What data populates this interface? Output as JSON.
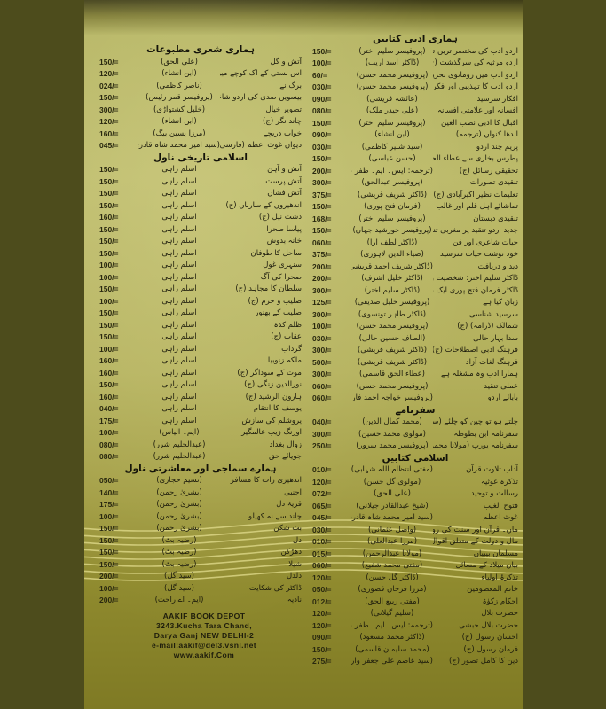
{
  "colors": {
    "background": "#4d4c1c",
    "paper": "#bcba6a",
    "ink": "#1c1b0c",
    "waves": "#e2dc8e"
  },
  "left_column": [
    {
      "heading": "ہماری شعری مطبوعات",
      "rows": [
        [
          "آتش و گل",
          "(علی الحق)",
          "150/="
        ],
        [
          "اس بستی کے اک کوچے میں (ج)",
          "(ابن انشاء)",
          "120/="
        ],
        [
          "برگ نے",
          "(ناصر کاظمی)",
          "024/="
        ],
        [
          "بیسویں صدی کی اردو شاعری",
          "(پروفیسر قمر رئیس)",
          "150/="
        ],
        [
          "تصویر خیال",
          "(خلیل کشتواڑی)",
          "300/="
        ],
        [
          "چاند نگر (ج)",
          "(ابن انشاء)",
          "120/="
        ],
        [
          "خواب دریچے",
          "(مرزا یٰسین بیگ)",
          "160/="
        ],
        [
          "دیوان غوث اعظم (فارسی۔اردو)",
          "(سید امیر محمد شاہ قادری)",
          "045/="
        ]
      ]
    },
    {
      "heading": "اسلامی تاریخی ناول",
      "rows": [
        [
          "آتش و آہن",
          "اسلم راہی",
          "150/="
        ],
        [
          "آتش پرست",
          "اسلم راہی",
          "150/="
        ],
        [
          "آتش فشاں",
          "اسلم راہی",
          "150/="
        ],
        [
          "اندھیروں کے سارباں (ج)",
          "اسلم راہی",
          "150/="
        ],
        [
          "دشت نیل (ج)",
          "اسلم راہی",
          "160/="
        ],
        [
          "پیاسا صحرا",
          "اسلم راہی",
          "150/="
        ],
        [
          "خانہ بدوش",
          "اسلم راہی",
          "150/="
        ],
        [
          "ساحل کا طوفان",
          "اسلم راہی",
          "150/="
        ],
        [
          "سنہری غول",
          "اسلم راہی",
          "100/="
        ],
        [
          "صحرا کی آگ",
          "اسلم راہی",
          "100/="
        ],
        [
          "سلطان کا مجاہد (ج)",
          "اسلم راہی",
          "150/="
        ],
        [
          "صلیب و حرم (ج)",
          "اسلم راہی",
          "100/="
        ],
        [
          "صلیب کے بھنور",
          "اسلم راہی",
          "150/="
        ],
        [
          "ظلم کدہ",
          "اسلم راہی",
          "150/="
        ],
        [
          "عقاب (ج)",
          "اسلم راہی",
          "150/="
        ],
        [
          "گرداب",
          "اسلم راہی",
          "100/="
        ],
        [
          "ملکہ زنوبیا",
          "اسلم راہی",
          "160/="
        ],
        [
          "موت کے سوداگر (ج)",
          "اسلم راہی",
          "160/="
        ],
        [
          "نورالدین زنگی (ج)",
          "اسلم راہی",
          "150/="
        ],
        [
          "ہارون الرشید (ج)",
          "اسلم راہی",
          "160/="
        ],
        [
          "یوسف کا انتقام",
          "اسلم راہی",
          "040/="
        ],
        [
          "یروشلم کی سازش",
          "اسلم راہی",
          "175/="
        ],
        [
          "اورنگ زیب عالمگیر",
          "(ایم۔ الیاس)",
          "100/="
        ],
        [
          "زوال بغداد",
          "(عبدالحلیم شرر)",
          "080/="
        ],
        [
          "جویائے حق",
          "(عبدالحلیم شرر)",
          "080/="
        ]
      ]
    },
    {
      "heading": "ہمارے سماجی اور معاشرتی ناول",
      "rows": [
        [
          "اندھیری رات کا مسافر",
          "(نسیم حجازی)",
          "050/="
        ],
        [
          "اجنبی",
          "(بشریٰ رحمن)",
          "140/="
        ],
        [
          "قریۂ دل",
          "(بشریٰ رحمن)",
          "175/="
        ],
        [
          "چاند سے نہ کھیلو",
          "(بشریٰ رحمن)",
          "100/="
        ],
        [
          "بت شکن",
          "(بشریٰ رحمن)",
          "150/="
        ],
        [
          "دل",
          "(رضیہ بٹ)",
          "150/="
        ],
        [
          "دھڑکن",
          "(رضیہ بٹ)",
          "150/="
        ],
        [
          "شیلا",
          "(رضیہ بٹ)",
          "150/="
        ],
        [
          "دلدل",
          "(سید گل)",
          "200/="
        ],
        [
          "ڈاکٹر کی شکایت",
          "(سید گل)",
          "100/="
        ],
        [
          "نادیہ",
          "(ایم۔ اے راحت)",
          "200/="
        ]
      ]
    }
  ],
  "right_column": [
    {
      "heading": "ہماری ادبی کتابیں",
      "rows": [
        [
          "اردو ادب کی مختصر ترین تاریخ",
          "(پروفیسر سلیم اختر)",
          "150/="
        ],
        [
          "اردو مرثیہ کی سرگذشت (ج)",
          "(ڈاکٹر اسد اریب)",
          "100/="
        ],
        [
          "اردو ادب میں رومانوی تحریک",
          "(پروفیسر محمد حسن)",
          "60/="
        ],
        [
          "اردو ادب کا تہذیبی اور فکری پس منظر",
          "(پروفیسر محمد حسن)",
          "030/="
        ],
        [
          "افکار سرسید",
          "(عائشہ قریشی)",
          "090/="
        ],
        [
          "افسانہ اور علامتی افسانہ",
          "(علی حیدر ملک)",
          "080/="
        ],
        [
          "اقبال کا ادبی نصب العین",
          "(پروفیسر سلیم اختر)",
          "150/="
        ],
        [
          "اندھا کنواں (ترجمہ)",
          "(ابن انشاء)",
          "090/="
        ],
        [
          "پریم چند اردو",
          "(سید شبیر کاظمی)",
          "030/="
        ],
        [
          "پطرس بخاری سے عطاء الحق قاسمی تک",
          "(حسن عباسی)",
          "150/="
        ],
        [
          "تحقیقی رسائل (ج)",
          "(ترجمہ: ایس۔ ایم۔ ظفر علی)",
          "200/="
        ],
        [
          "تنقیدی تصورات",
          "(پروفیسر عبدالحق)",
          "300/="
        ],
        [
          "تعلیمات نظیر اکبرآبادی (ج)",
          "(ڈاکٹر شریف قریشی)",
          "375/="
        ],
        [
          "تماشائے اہل قلم اور غالب",
          "(فرمان فتح پوری)",
          "150/="
        ],
        [
          "تنقیدی دبستان",
          "(پروفیسر سلیم اختر)",
          "168/="
        ],
        [
          "جدید اردو تنقید پر مغربی تنقید کے اثرات",
          "(پروفیسر خورشید جہاں)",
          "150/="
        ],
        [
          "حیات شاعری اور فن",
          "(ڈاکٹر لطف آرا)",
          "060/="
        ],
        [
          "خود نوشت حیات سرسید",
          "(ضیاء الدین لاہوری)",
          "375/="
        ],
        [
          "دید و دریافت",
          "(ڈاکٹر شریف احمد قریشی)",
          "200/="
        ],
        [
          "ڈاکٹر سلیم اختر: شخصیت و فن",
          "(ڈاکٹر خلیل اشرف)",
          "200/="
        ],
        [
          "ڈاکٹر فرمان فتح پوری ایک ہمہ جہت فنکار",
          "(ڈاکٹر سلیم اختر)",
          "300/="
        ],
        [
          "زبان کیا ہے",
          "(پروفیسر خلیل صدیقی)",
          "125/="
        ],
        [
          "سرسید شناسی",
          "(ڈاکٹر طاہر تونسوی)",
          "300/="
        ],
        [
          "شمالک (ڈرامہ) (ج)",
          "(پروفیسر محمد حسن)",
          "100/="
        ],
        [
          "سدا بہار حالی",
          "(الطاف حسین حالی)",
          "030/="
        ],
        [
          "فرہنگ ادبی اصطلاحات (ج)",
          "(ڈاکٹر شریف قریشی)",
          "300/="
        ],
        [
          "فرہنگ لغات آزاد",
          "(ڈاکٹر شریف قریشی)",
          "500/="
        ],
        [
          "ہمارا ادب وہ مشغلہ ہے",
          "(عطاء الحق قاسمی)",
          "300/="
        ],
        [
          "عملی تنقید",
          "(پروفیسر محمد حسن)",
          "060/="
        ],
        [
          "بابائے اردو",
          "(پروفیسر خواجہ احمد فاروقی)",
          "060/="
        ]
      ]
    },
    {
      "heading": "سفرنامے",
      "rows": [
        [
          "چلتے ہو تو چین کو چلئے (سفرنامہ پاکستان)",
          "(محمد کمال الدین)",
          "040/="
        ],
        [
          "سفرنامہ ابن بطوطہ",
          "(مولوی محمد حسین)",
          "300/="
        ],
        [
          "سفرنامہ یورپ (مولانا محمد علی جوہر) (ج)",
          "(پروفیسر محمد سرور)",
          "250/="
        ]
      ]
    },
    {
      "heading": "اسلامی کتابیں",
      "rows": [
        [
          "آداب تلاوت قرآن",
          "(مفتی انتظام اللہ شہابی)",
          "010/="
        ],
        [
          "تذکرہ غوثیہ",
          "(مولوی گل حسن)",
          "120/="
        ],
        [
          "رسالت و توحید",
          "(علی الحق)",
          "072/="
        ],
        [
          "فتوح الغیب",
          "(شیخ عبدالقادر جیلانی)",
          "065/="
        ],
        [
          "غوث اعظم",
          "(سید امیر محمد شاہ قادری)",
          "045/="
        ],
        [
          "ماں۔ قرآن اور سنت کی روشنی میں",
          "(واصل عثمانی)",
          "030/="
        ],
        [
          "مال و دولت کے متعلق اقوال",
          "(مرزا عبدالعلی)",
          "010/="
        ],
        [
          "مسلمان بیبیاں",
          "(مولانا عبدالرحمن)",
          "015/="
        ],
        [
          "بیان میلاد کے مسائل",
          "(مفتی محمد شفیع)",
          "060/="
        ],
        [
          "تذکرۂ اولیاء",
          "(ڈاکٹر گل حسن)",
          "120/="
        ],
        [
          "خاتم المعصومین",
          "(مرزا فرحان قصوری)",
          "050/="
        ],
        [
          "احکام زکوٰۃ",
          "(مفتی ربیع الحق)",
          "012/="
        ],
        [
          "حضرت بلال",
          "(سلیم گیلانی)",
          "120/="
        ],
        [
          "حضرت بلال حبشی",
          "(ترجمہ: ایس۔ ایم۔ ظفر علی)",
          "120/="
        ],
        [
          "احسان رسول (ج)",
          "(ڈاکٹر محمد مسعود)",
          "090/="
        ],
        [
          "فرمان رسول (ج)",
          "(محمد سلیمان قاسمی)",
          "150/="
        ],
        [
          "دین کا کامل تصور (ج)",
          "(سید عاصم علی جعفر واری)",
          "275/="
        ]
      ]
    }
  ],
  "address": {
    "name": "AAKIF BOOK DEPOT",
    "line1": "3243.Kucha Tara Chand,",
    "line2": "Darya Ganj NEW DELHI-2",
    "email": "e-mail:aakif@del3.vsnl.net",
    "web": "www.aakif.Com"
  }
}
